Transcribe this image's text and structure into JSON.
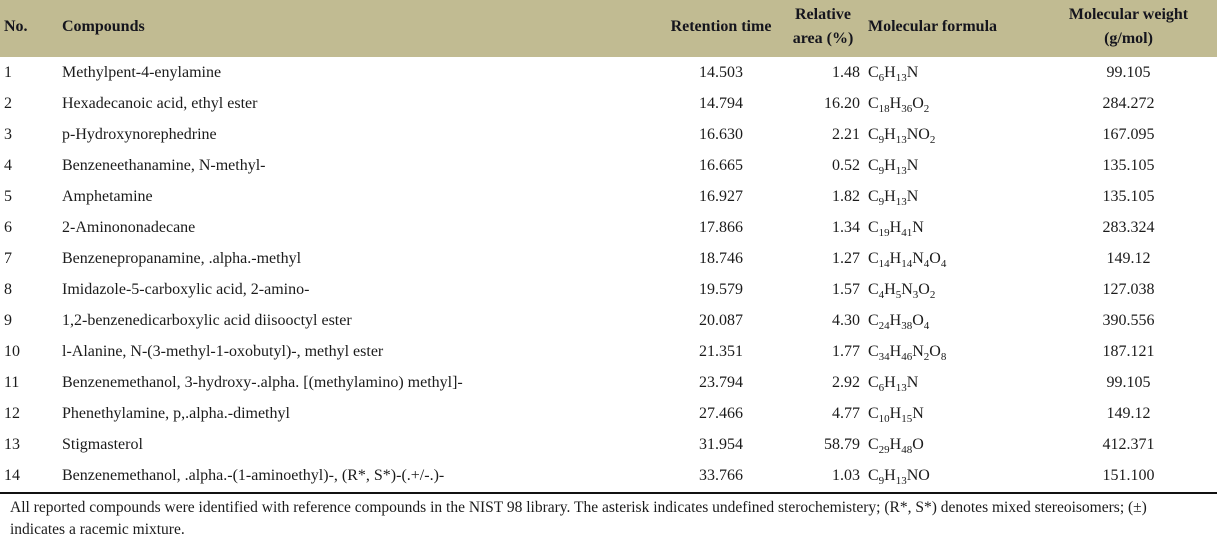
{
  "colors": {
    "header_bg": "#c1bb92",
    "header_text": "#15151d",
    "body_text": "#1b1b1b",
    "rule": "#111111"
  },
  "table": {
    "headers": {
      "no": "No.",
      "compounds": "Compounds",
      "retention": "Retention time",
      "relative_area": "Relative area (%)",
      "formula": "Molecular formula",
      "weight": "Molecular weight (g/mol)"
    },
    "rows": [
      {
        "no": "1",
        "compound": "Methylpent-4-enylamine",
        "retention": "14.503",
        "area": "1.48",
        "formula": "C6H13N",
        "weight": "99.105"
      },
      {
        "no": "2",
        "compound": "Hexadecanoic acid, ethyl ester",
        "retention": "14.794",
        "area": "16.20",
        "formula": "C18H36O2",
        "weight": "284.272"
      },
      {
        "no": "3",
        "compound": "p-Hydroxynorephedrine",
        "retention": "16.630",
        "area": "2.21",
        "formula": "C9H13NO2",
        "weight": "167.095"
      },
      {
        "no": "4",
        "compound": "Benzeneethanamine, N-methyl-",
        "retention": "16.665",
        "area": "0.52",
        "formula": "C9H13N",
        "weight": "135.105"
      },
      {
        "no": "5",
        "compound": "Amphetamine",
        "retention": "16.927",
        "area": "1.82",
        "formula": "C9H13N",
        "weight": "135.105"
      },
      {
        "no": "6",
        "compound": "2-Aminononadecane",
        "retention": "17.866",
        "area": "1.34",
        "formula": "C19H41N",
        "weight": "283.324"
      },
      {
        "no": "7",
        "compound": "Benzenepropanamine, .alpha.-methyl",
        "retention": "18.746",
        "area": "1.27",
        "formula": "C14H14N4O4",
        "weight": "149.12"
      },
      {
        "no": "8",
        "compound": "Imidazole-5-carboxylic acid, 2-amino-",
        "retention": "19.579",
        "area": "1.57",
        "formula": "C4H5N3O2",
        "weight": "127.038"
      },
      {
        "no": "9",
        "compound": "1,2-benzenedicarboxylic acid diisooctyl ester",
        "retention": "20.087",
        "area": "4.30",
        "formula": "C24H38O4",
        "weight": "390.556"
      },
      {
        "no": "10",
        "compound": "l-Alanine, N-(3-methyl-1-oxobutyl)-, methyl ester",
        "retention": "21.351",
        "area": "1.77",
        "formula": "C34H46N2O8",
        "weight": "187.121"
      },
      {
        "no": "11",
        "compound": "Benzenemethanol, 3-hydroxy-.alpha. [(methylamino) methyl]-",
        "retention": "23.794",
        "area": "2.92",
        "formula": "C6H13N",
        "weight": "99.105"
      },
      {
        "no": "12",
        "compound": "Phenethylamine, p,.alpha.-dimethyl",
        "retention": "27.466",
        "area": "4.77",
        "formula": "C10H15N",
        "weight": "149.12"
      },
      {
        "no": "13",
        "compound": "Stigmasterol",
        "retention": "31.954",
        "area": "58.79",
        "formula": "C29H48O",
        "weight": "412.371"
      },
      {
        "no": "14",
        "compound": "Benzenemethanol, .alpha.-(1-aminoethyl)-, (R*, S*)-(.+/-.)-",
        "retention": "33.766",
        "area": "1.03",
        "formula": "C9H13NO",
        "weight": "151.100"
      }
    ],
    "footnote": "All reported compounds were identified with reference compounds in the NIST 98 library. The asterisk indicates undefined sterochemistery; (R*, S*) denotes mixed stereoisomers; (±) indicates a racemic mixture."
  }
}
